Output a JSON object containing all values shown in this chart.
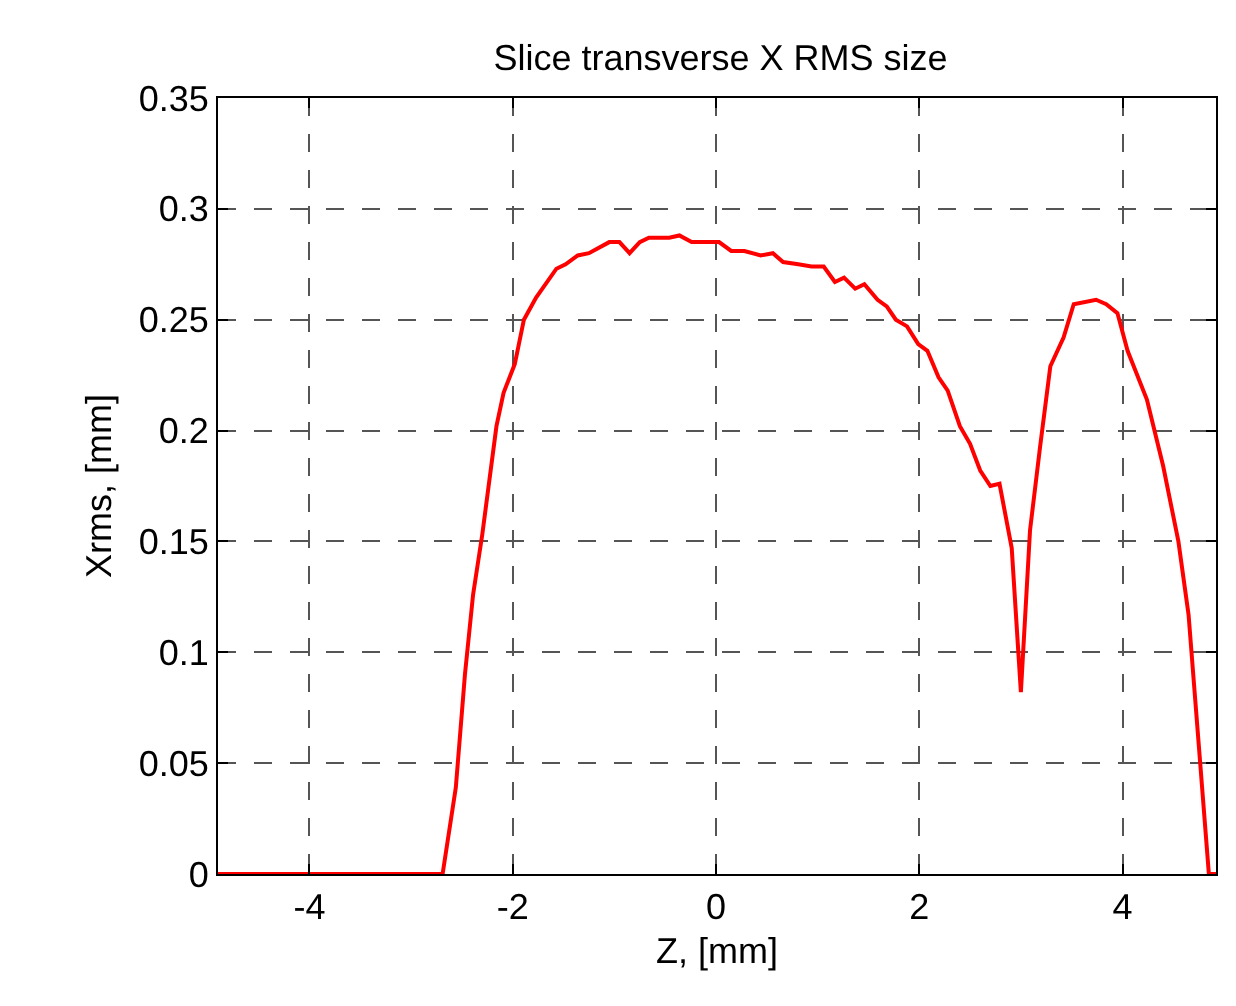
{
  "chart_data": {
    "type": "line",
    "title": "Slice transverse X RMS size",
    "xlabel": "Z, [mm]",
    "ylabel": "Xrms, [mm]",
    "x": [
      -4.9,
      -2.69,
      -2.56,
      -2.47,
      -2.39,
      -2.3,
      -2.16,
      -2.09,
      -1.98,
      -1.89,
      -1.77,
      -1.57,
      -1.48,
      -1.36,
      -1.25,
      -1.05,
      -0.95,
      -0.85,
      -0.75,
      -0.66,
      -0.46,
      -0.36,
      -0.24,
      0.03,
      0.15,
      0.28,
      0.44,
      0.56,
      0.66,
      0.81,
      0.94,
      1.06,
      1.17,
      1.26,
      1.37,
      1.46,
      1.59,
      1.68,
      1.77,
      1.88,
      1.99,
      2.08,
      2.19,
      2.28,
      2.4,
      2.5,
      2.6,
      2.7,
      2.79,
      2.91,
      3.0,
      3.09,
      3.19,
      3.29,
      3.42,
      3.52,
      3.74,
      3.84,
      3.95,
      4.05,
      4.24,
      4.4,
      4.55,
      4.65,
      4.85,
      4.92
    ],
    "series": [
      {
        "color": "#ff0000",
        "values": [
          0,
          0,
          0.039,
          0.09,
          0.126,
          0.153,
          0.202,
          0.217,
          0.23,
          0.25,
          0.26,
          0.273,
          0.275,
          0.279,
          0.28,
          0.285,
          0.285,
          0.28,
          0.285,
          0.287,
          0.287,
          0.288,
          0.285,
          0.285,
          0.281,
          0.281,
          0.279,
          0.28,
          0.276,
          0.275,
          0.274,
          0.274,
          0.267,
          0.269,
          0.264,
          0.266,
          0.259,
          0.256,
          0.25,
          0.247,
          0.239,
          0.236,
          0.224,
          0.218,
          0.202,
          0.194,
          0.182,
          0.175,
          0.176,
          0.147,
          0.082,
          0.155,
          0.193,
          0.229,
          0.242,
          0.257,
          0.259,
          0.257,
          0.253,
          0.236,
          0.214,
          0.184,
          0.15,
          0.117,
          0,
          0
        ]
      }
    ],
    "xlim": [
      -4.9,
      4.92
    ],
    "xticks": [
      -4,
      -2,
      0,
      2,
      4
    ],
    "ylim": [
      0,
      0.35
    ],
    "yticks": [
      0,
      0.05,
      0.1,
      0.15,
      0.2,
      0.25,
      0.3,
      0.35
    ],
    "grid": true,
    "line_style": "solid",
    "marker": "none"
  }
}
